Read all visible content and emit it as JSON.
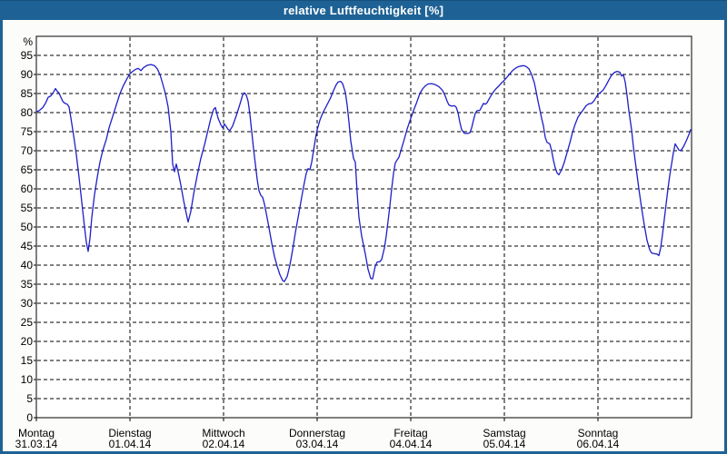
{
  "window": {
    "title": "relative Luftfeuchtigkeit [%]"
  },
  "colors": {
    "titlebar_bg": "#1e6295",
    "frame": "#1e6295",
    "line": "#1e1ec8",
    "grid": "#000000",
    "plot_border": "#000000",
    "text": "#000000",
    "title_text": "#ffffff",
    "content_bg": "#fcfdfa",
    "plot_bg": "#ffffff"
  },
  "chart_data": {
    "type": "line",
    "title": "relative Luftfeuchtigkeit [%]",
    "ylabel": "%",
    "ylim": [
      0,
      100
    ],
    "ytick_step": 5,
    "ytick_labels": [
      "0",
      "5",
      "10",
      "15",
      "20",
      "25",
      "30",
      "35",
      "40",
      "45",
      "50",
      "55",
      "60",
      "65",
      "70",
      "75",
      "80",
      "85",
      "90",
      "95"
    ],
    "grid": "dashed-black",
    "legend": "none",
    "x_unit": "days since Montag 31.03.14 00:00",
    "categories": [
      {
        "day": "Montag",
        "date": "31.03.14"
      },
      {
        "day": "Dienstag",
        "date": "01.04.14"
      },
      {
        "day": "Mittwoch",
        "date": "02.04.14"
      },
      {
        "day": "Donnerstag",
        "date": "03.04.14"
      },
      {
        "day": "Freitag",
        "date": "04.04.14"
      },
      {
        "day": "Samstag",
        "date": "05.04.14"
      },
      {
        "day": "Sonntag",
        "date": "06.04.14"
      }
    ],
    "series": [
      {
        "name": "relative Luftfeuchtigkeit [%]",
        "points": [
          [
            0.0,
            80.2
          ],
          [
            0.029,
            80.5
          ],
          [
            0.049,
            80.9
          ],
          [
            0.068,
            81.3
          ],
          [
            0.097,
            82.4
          ],
          [
            0.126,
            84.0
          ],
          [
            0.155,
            84.4
          ],
          [
            0.175,
            85.0
          ],
          [
            0.204,
            86.3
          ],
          [
            0.223,
            85.6
          ],
          [
            0.243,
            85.1
          ],
          [
            0.262,
            84.0
          ],
          [
            0.282,
            83.0
          ],
          [
            0.301,
            82.5
          ],
          [
            0.33,
            82.2
          ],
          [
            0.35,
            81.5
          ],
          [
            0.369,
            78.6
          ],
          [
            0.398,
            74.0
          ],
          [
            0.427,
            69.0
          ],
          [
            0.456,
            63.0
          ],
          [
            0.485,
            56.5
          ],
          [
            0.515,
            50.0
          ],
          [
            0.534,
            46.0
          ],
          [
            0.553,
            43.6
          ],
          [
            0.573,
            47.0
          ],
          [
            0.592,
            52.5
          ],
          [
            0.621,
            58.5
          ],
          [
            0.65,
            63.0
          ],
          [
            0.68,
            67.0
          ],
          [
            0.709,
            70.0
          ],
          [
            0.748,
            73.0
          ],
          [
            0.777,
            76.0
          ],
          [
            0.816,
            79.0
          ],
          [
            0.854,
            82.0
          ],
          [
            0.893,
            85.0
          ],
          [
            0.932,
            87.2
          ],
          [
            0.971,
            89.0
          ],
          [
            1.0,
            90.2
          ],
          [
            1.029,
            90.8
          ],
          [
            1.058,
            91.3
          ],
          [
            1.087,
            91.6
          ],
          [
            1.117,
            91.0
          ],
          [
            1.146,
            91.8
          ],
          [
            1.184,
            92.4
          ],
          [
            1.223,
            92.6
          ],
          [
            1.262,
            92.3
          ],
          [
            1.291,
            91.5
          ],
          [
            1.32,
            90.0
          ],
          [
            1.35,
            87.5
          ],
          [
            1.379,
            85.0
          ],
          [
            1.408,
            81.5
          ],
          [
            1.437,
            75.0
          ],
          [
            1.456,
            66.5
          ],
          [
            1.476,
            64.5
          ],
          [
            1.495,
            66.5
          ],
          [
            1.515,
            64.5
          ],
          [
            1.544,
            61.0
          ],
          [
            1.573,
            57.0
          ],
          [
            1.602,
            53.5
          ],
          [
            1.621,
            51.3
          ],
          [
            1.65,
            54.0
          ],
          [
            1.68,
            58.5
          ],
          [
            1.718,
            63.5
          ],
          [
            1.757,
            68.0
          ],
          [
            1.796,
            71.5
          ],
          [
            1.835,
            75.5
          ],
          [
            1.864,
            78.5
          ],
          [
            1.893,
            80.8
          ],
          [
            1.913,
            81.3
          ],
          [
            1.942,
            78.5
          ],
          [
            1.971,
            76.8
          ],
          [
            1.99,
            76.0
          ],
          [
            2.01,
            77.0
          ],
          [
            2.029,
            76.3
          ],
          [
            2.049,
            75.6
          ],
          [
            2.068,
            75.3
          ],
          [
            2.097,
            76.5
          ],
          [
            2.136,
            79.2
          ],
          [
            2.175,
            82.2
          ],
          [
            2.204,
            84.6
          ],
          [
            2.223,
            85.2
          ],
          [
            2.243,
            84.6
          ],
          [
            2.262,
            83.0
          ],
          [
            2.282,
            79.5
          ],
          [
            2.301,
            75.0
          ],
          [
            2.32,
            70.5
          ],
          [
            2.34,
            66.5
          ],
          [
            2.359,
            62.5
          ],
          [
            2.379,
            59.5
          ],
          [
            2.398,
            58.3
          ],
          [
            2.417,
            57.8
          ],
          [
            2.437,
            56.0
          ],
          [
            2.456,
            53.6
          ],
          [
            2.485,
            49.8
          ],
          [
            2.515,
            45.8
          ],
          [
            2.544,
            42.3
          ],
          [
            2.573,
            39.7
          ],
          [
            2.602,
            37.5
          ],
          [
            2.631,
            36.0
          ],
          [
            2.65,
            35.7
          ],
          [
            2.68,
            37.0
          ],
          [
            2.709,
            40.0
          ],
          [
            2.738,
            44.0
          ],
          [
            2.767,
            48.5
          ],
          [
            2.796,
            52.4
          ],
          [
            2.825,
            56.5
          ],
          [
            2.854,
            60.5
          ],
          [
            2.883,
            64.0
          ],
          [
            2.903,
            65.3
          ],
          [
            2.922,
            65.0
          ],
          [
            2.942,
            67.0
          ],
          [
            2.961,
            70.0
          ],
          [
            2.981,
            73.0
          ],
          [
            3.0,
            75.5
          ],
          [
            3.029,
            78.0
          ],
          [
            3.058,
            79.8
          ],
          [
            3.087,
            81.2
          ],
          [
            3.117,
            82.6
          ],
          [
            3.146,
            84.0
          ],
          [
            3.175,
            85.8
          ],
          [
            3.204,
            87.3
          ],
          [
            3.223,
            88.0
          ],
          [
            3.252,
            88.2
          ],
          [
            3.272,
            87.6
          ],
          [
            3.301,
            85.3
          ],
          [
            3.32,
            82.0
          ],
          [
            3.34,
            77.5
          ],
          [
            3.359,
            72.5
          ],
          [
            3.379,
            69.5
          ],
          [
            3.388,
            68.0
          ],
          [
            3.408,
            67.0
          ],
          [
            3.427,
            59.0
          ],
          [
            3.447,
            52.5
          ],
          [
            3.476,
            47.6
          ],
          [
            3.515,
            42.9
          ],
          [
            3.544,
            38.9
          ],
          [
            3.573,
            36.5
          ],
          [
            3.592,
            36.4
          ],
          [
            3.621,
            39.8
          ],
          [
            3.641,
            40.8
          ],
          [
            3.67,
            40.9
          ],
          [
            3.689,
            41.5
          ],
          [
            3.718,
            44.5
          ],
          [
            3.738,
            47.6
          ],
          [
            3.757,
            51.5
          ],
          [
            3.777,
            55.5
          ],
          [
            3.796,
            60.0
          ],
          [
            3.816,
            64.0
          ],
          [
            3.835,
            66.8
          ],
          [
            3.854,
            67.6
          ],
          [
            3.874,
            68.3
          ],
          [
            3.903,
            70.7
          ],
          [
            3.932,
            73.1
          ],
          [
            3.961,
            75.7
          ],
          [
            4.0,
            78.5
          ],
          [
            4.029,
            80.5
          ],
          [
            4.058,
            82.3
          ],
          [
            4.097,
            85.0
          ],
          [
            4.126,
            86.2
          ],
          [
            4.155,
            87.0
          ],
          [
            4.184,
            87.5
          ],
          [
            4.223,
            87.6
          ],
          [
            4.262,
            87.3
          ],
          [
            4.301,
            86.8
          ],
          [
            4.34,
            85.8
          ],
          [
            4.369,
            84.3
          ],
          [
            4.388,
            83.0
          ],
          [
            4.408,
            82.0
          ],
          [
            4.437,
            81.7
          ],
          [
            4.466,
            81.8
          ],
          [
            4.485,
            81.4
          ],
          [
            4.505,
            80.0
          ],
          [
            4.524,
            77.5
          ],
          [
            4.544,
            75.5
          ],
          [
            4.573,
            74.6
          ],
          [
            4.602,
            74.5
          ],
          [
            4.631,
            74.7
          ],
          [
            4.65,
            76.0
          ],
          [
            4.67,
            78.0
          ],
          [
            4.689,
            79.8
          ],
          [
            4.709,
            80.5
          ],
          [
            4.738,
            80.6
          ],
          [
            4.757,
            81.5
          ],
          [
            4.777,
            82.4
          ],
          [
            4.796,
            82.2
          ],
          [
            4.816,
            82.6
          ],
          [
            4.835,
            83.5
          ],
          [
            4.854,
            84.3
          ],
          [
            4.883,
            85.4
          ],
          [
            4.913,
            86.3
          ],
          [
            4.942,
            87.0
          ],
          [
            4.971,
            87.8
          ],
          [
            5.0,
            88.5
          ],
          [
            5.029,
            89.3
          ],
          [
            5.058,
            90.2
          ],
          [
            5.087,
            91.0
          ],
          [
            5.117,
            91.6
          ],
          [
            5.146,
            92.0
          ],
          [
            5.175,
            92.2
          ],
          [
            5.204,
            92.3
          ],
          [
            5.233,
            92.1
          ],
          [
            5.262,
            91.5
          ],
          [
            5.291,
            90.0
          ],
          [
            5.32,
            87.8
          ],
          [
            5.34,
            85.5
          ],
          [
            5.359,
            83.0
          ],
          [
            5.379,
            80.8
          ],
          [
            5.398,
            78.5
          ],
          [
            5.417,
            76.5
          ],
          [
            5.437,
            73.5
          ],
          [
            5.456,
            72.2
          ],
          [
            5.485,
            71.8
          ],
          [
            5.505,
            70.0
          ],
          [
            5.524,
            67.5
          ],
          [
            5.544,
            65.5
          ],
          [
            5.563,
            64.2
          ],
          [
            5.583,
            63.7
          ],
          [
            5.612,
            65.0
          ],
          [
            5.641,
            67.0
          ],
          [
            5.67,
            69.5
          ],
          [
            5.699,
            72.0
          ],
          [
            5.728,
            74.8
          ],
          [
            5.757,
            77.0
          ],
          [
            5.786,
            78.8
          ],
          [
            5.816,
            79.8
          ],
          [
            5.845,
            80.8
          ],
          [
            5.874,
            81.8
          ],
          [
            5.903,
            82.3
          ],
          [
            5.932,
            82.4
          ],
          [
            5.961,
            83.2
          ],
          [
            6.0,
            84.8
          ],
          [
            6.029,
            85.3
          ],
          [
            6.058,
            86.0
          ],
          [
            6.087,
            87.2
          ],
          [
            6.117,
            88.6
          ],
          [
            6.146,
            89.8
          ],
          [
            6.175,
            90.5
          ],
          [
            6.204,
            90.8
          ],
          [
            6.233,
            90.6
          ],
          [
            6.252,
            89.6
          ],
          [
            6.272,
            89.9
          ],
          [
            6.291,
            88.0
          ],
          [
            6.311,
            84.5
          ],
          [
            6.33,
            80.5
          ],
          [
            6.359,
            75.5
          ],
          [
            6.379,
            71.0
          ],
          [
            6.408,
            65.5
          ],
          [
            6.437,
            60.0
          ],
          [
            6.466,
            55.0
          ],
          [
            6.495,
            50.5
          ],
          [
            6.524,
            46.5
          ],
          [
            6.553,
            44.0
          ],
          [
            6.573,
            43.2
          ],
          [
            6.602,
            43.0
          ],
          [
            6.631,
            42.9
          ],
          [
            6.65,
            42.5
          ],
          [
            6.67,
            44.5
          ],
          [
            6.689,
            48.0
          ],
          [
            6.709,
            52.0
          ],
          [
            6.728,
            56.0
          ],
          [
            6.748,
            60.0
          ],
          [
            6.767,
            63.5
          ],
          [
            6.786,
            66.5
          ],
          [
            6.806,
            69.5
          ],
          [
            6.825,
            71.8
          ],
          [
            6.845,
            71.0
          ],
          [
            6.864,
            70.2
          ],
          [
            6.884,
            70.0
          ],
          [
            6.913,
            71.0
          ],
          [
            6.942,
            72.5
          ],
          [
            6.971,
            74.2
          ],
          [
            6.99,
            75.5
          ]
        ]
      }
    ]
  }
}
